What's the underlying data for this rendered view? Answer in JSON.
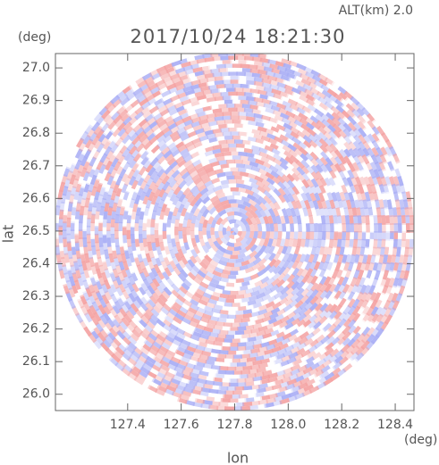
{
  "chart_data": {
    "type": "radar-ppi",
    "title": "2017/10/24 18:21:30",
    "subtitle": "ALT(km) 2.0",
    "x_label": "lon",
    "y_label": "lat",
    "x_unit": "(deg)",
    "y_unit": "(deg)",
    "xlim": [
      127.13,
      128.47
    ],
    "ylim": [
      25.95,
      27.044
    ],
    "xticks": [
      127.4,
      127.6,
      127.8,
      {
        "value": 128,
        "label": "128.0"
      },
      128.2,
      128.4
    ],
    "yticks": [
      {
        "value": 26,
        "label": "26.0"
      },
      26.1,
      26.2,
      26.3,
      26.4,
      26.5,
      26.6,
      26.7,
      26.8,
      26.9,
      {
        "value": 27,
        "label": "27.0"
      }
    ],
    "colors": [
      "#f4a3a3",
      "#a9aef5"
    ]
  }
}
